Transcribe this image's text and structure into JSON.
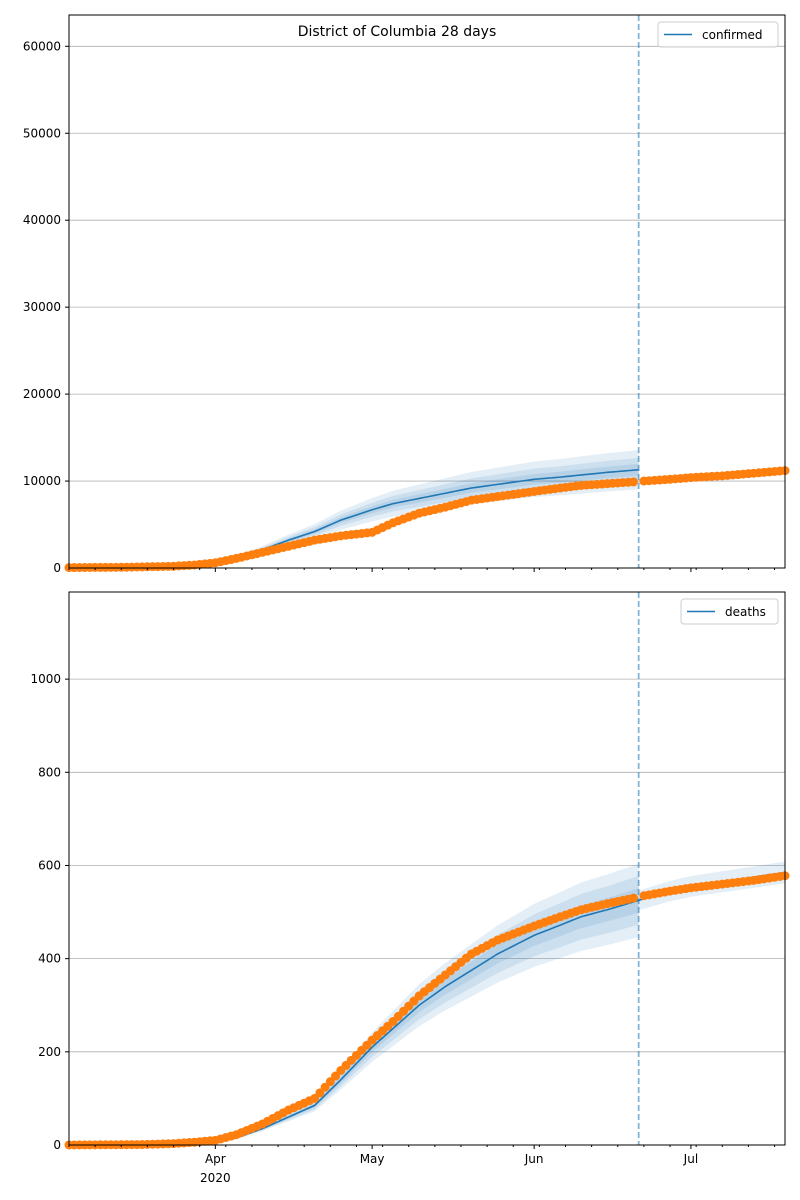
{
  "chart_data": [
    {
      "type": "line",
      "title": "District of Columbia 28 days",
      "legend": "confirmed",
      "legend_placement": "top-right",
      "start_date": "2020-03-04",
      "xlim_days": [
        0,
        137
      ],
      "cutoff_day": 109,
      "ylim": [
        0,
        63600
      ],
      "yticks": [
        0,
        10000,
        20000,
        30000,
        40000,
        50000,
        60000
      ],
      "ytick_labels": [
        "0",
        "10000",
        "20000",
        "30000",
        "40000",
        "50000",
        "60000"
      ],
      "grid": true,
      "observed": {
        "days": [
          0,
          10,
          20,
          24,
          28,
          32,
          37,
          42,
          47,
          52,
          58,
          62,
          67,
          72,
          77,
          83,
          89,
          94,
          98,
          103,
          108,
          110,
          115,
          119,
          125,
          131,
          137
        ],
        "values": [
          50,
          80,
          200,
          350,
          600,
          1100,
          1800,
          2500,
          3200,
          3700,
          4100,
          5200,
          6300,
          7000,
          7800,
          8300,
          8800,
          9200,
          9500,
          9700,
          9900,
          10000,
          10200,
          10400,
          10600,
          10900,
          11200
        ]
      },
      "model": {
        "days": [
          0,
          20,
          24,
          28,
          32,
          37,
          42,
          47,
          52,
          58,
          62,
          67,
          72,
          77,
          83,
          89,
          94,
          98,
          103,
          109
        ],
        "values": [
          0,
          150,
          300,
          500,
          1100,
          2100,
          3200,
          4200,
          5500,
          6700,
          7400,
          8000,
          8600,
          9200,
          9700,
          10200,
          10450,
          10700,
          11000,
          11300
        ]
      },
      "band_rel": [
        0.06,
        0.12,
        0.2
      ]
    },
    {
      "type": "line",
      "legend": "deaths",
      "legend_placement": "top-right",
      "start_date": "2020-03-04",
      "xlim_days": [
        0,
        137
      ],
      "cutoff_day": 109,
      "ylim": [
        0,
        1187
      ],
      "yticks": [
        0,
        200,
        400,
        600,
        800,
        1000
      ],
      "ytick_labels": [
        "0",
        "200",
        "400",
        "600",
        "800",
        "1000"
      ],
      "grid": true,
      "observed": {
        "days": [
          0,
          14,
          20,
          24,
          28,
          32,
          37,
          42,
          47,
          52,
          58,
          62,
          67,
          72,
          77,
          82,
          89,
          94,
          98,
          103,
          108,
          110,
          115,
          119,
          125,
          131,
          137
        ],
        "values": [
          0,
          1,
          3,
          6,
          10,
          22,
          45,
          75,
          100,
          160,
          225,
          265,
          320,
          365,
          410,
          440,
          470,
          490,
          505,
          518,
          530,
          535,
          545,
          552,
          560,
          568,
          578
        ]
      },
      "model": {
        "days": [
          0,
          24,
          28,
          32,
          37,
          42,
          47,
          52,
          58,
          62,
          67,
          72,
          77,
          82,
          89,
          94,
          98,
          103,
          109,
          115,
          119,
          125,
          131,
          137
        ],
        "values": [
          0,
          2,
          5,
          15,
          35,
          60,
          85,
          140,
          210,
          250,
          300,
          340,
          375,
          410,
          450,
          472,
          490,
          505,
          525,
          545,
          555,
          565,
          575,
          585
        ]
      },
      "band_rel": [
        0.05,
        0.1,
        0.15
      ]
    }
  ],
  "xaxis": {
    "tick_labels": [
      {
        "day": 28,
        "label": "Apr"
      },
      {
        "day": 58,
        "label": "May"
      },
      {
        "day": 89,
        "label": "Jun"
      },
      {
        "day": 119,
        "label": "Jul"
      }
    ],
    "year_label": "2020"
  },
  "colors": {
    "model": "#1f77b4",
    "observed": "#ff7f0e",
    "grid": "#b0b0b0"
  }
}
